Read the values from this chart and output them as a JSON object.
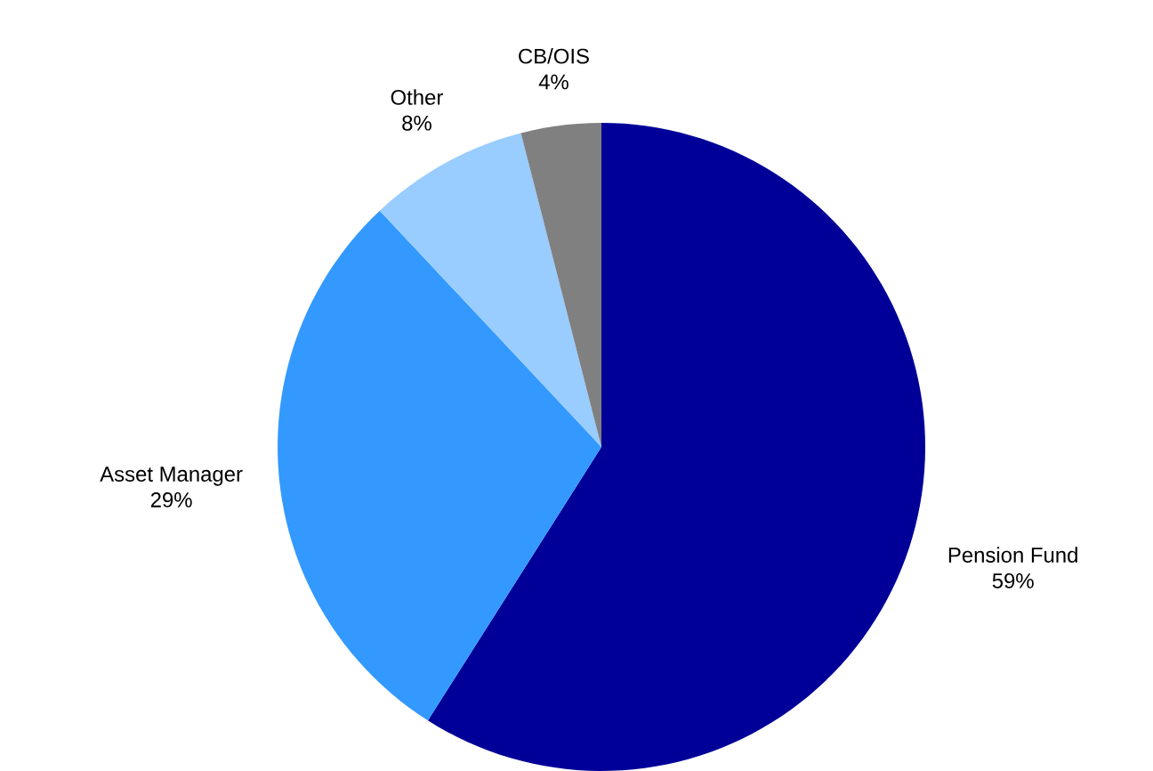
{
  "chart_data": {
    "type": "pie",
    "categories": [
      "Pension Fund",
      "Asset Manager",
      "Other",
      "CB/OIS"
    ],
    "values": [
      59,
      29,
      8,
      4
    ],
    "value_labels": [
      "59%",
      "29%",
      "8%",
      "4%"
    ],
    "colors": [
      "#000099",
      "#3399ff",
      "#99ccff",
      "#808080"
    ]
  }
}
